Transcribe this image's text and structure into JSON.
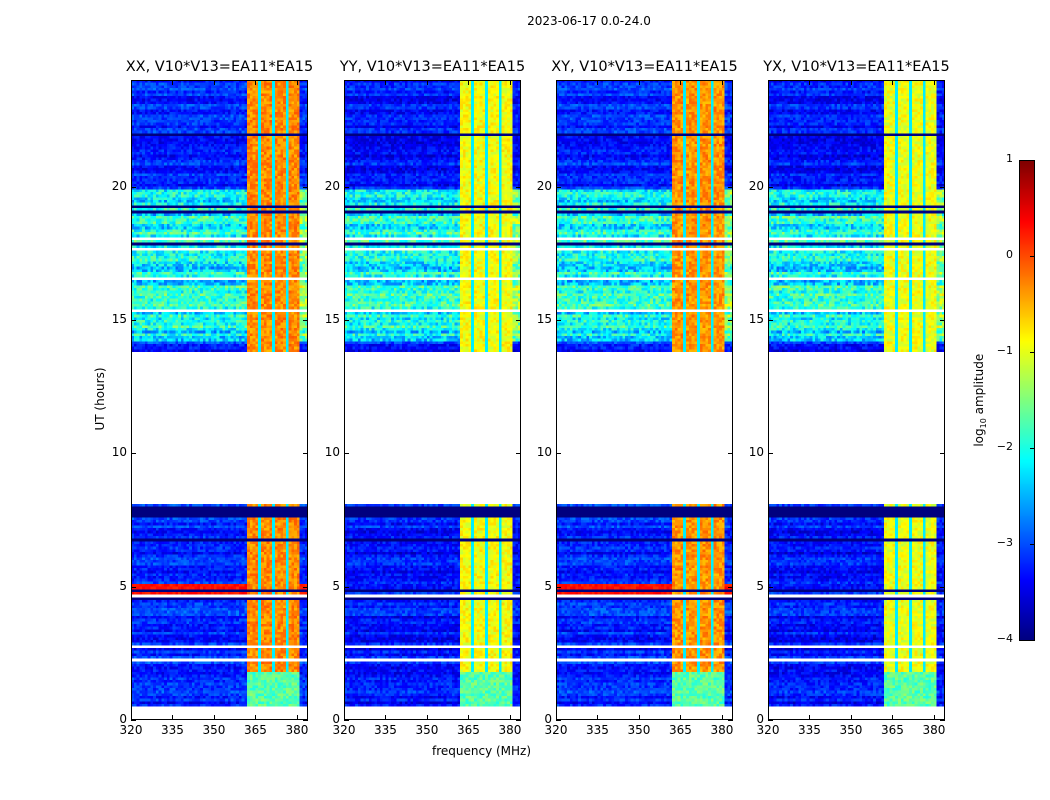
{
  "chart_data": {
    "type": "heatmap",
    "suptitle": "2023-06-17 0.0-24.0",
    "xlabel": "frequency (MHz)",
    "ylabel": "UT (hours)",
    "xlim": [
      320,
      384
    ],
    "ylim": [
      0,
      24
    ],
    "xticks": [
      "320",
      "335",
      "350",
      "365",
      "380"
    ],
    "xtick_values": [
      320,
      335,
      350,
      365,
      380
    ],
    "yticks": [
      "0",
      "5",
      "10",
      "15",
      "20"
    ],
    "ytick_values": [
      0,
      5,
      10,
      15,
      20
    ],
    "panels": [
      {
        "title": "XX, V10*V13=EA11*EA15",
        "band_level": -0.3,
        "base_level": -3.2
      },
      {
        "title": "YY, V10*V13=EA11*EA15",
        "band_level": -0.9,
        "base_level": -3.3
      },
      {
        "title": "XY, V10*V13=EA11*EA15",
        "band_level": -0.35,
        "base_level": -3.2
      },
      {
        "title": "YX, V10*V13=EA11*EA15",
        "band_level": -0.95,
        "base_level": -3.3
      }
    ],
    "data_gap_hours": [
      8.1,
      13.8
    ],
    "data_start_hours": 0.5,
    "bright_band_mhz": [
      362,
      381
    ],
    "colorbar": {
      "label_main": "log",
      "label_sub": "10",
      "label_rest": " amplitude",
      "range": [
        -4,
        1
      ],
      "ticks": [
        "1",
        "0",
        "−1",
        "−2",
        "−3",
        "−4"
      ],
      "tick_values": [
        1,
        0,
        -1,
        -2,
        -3,
        -4
      ],
      "colormap": "jet"
    }
  }
}
